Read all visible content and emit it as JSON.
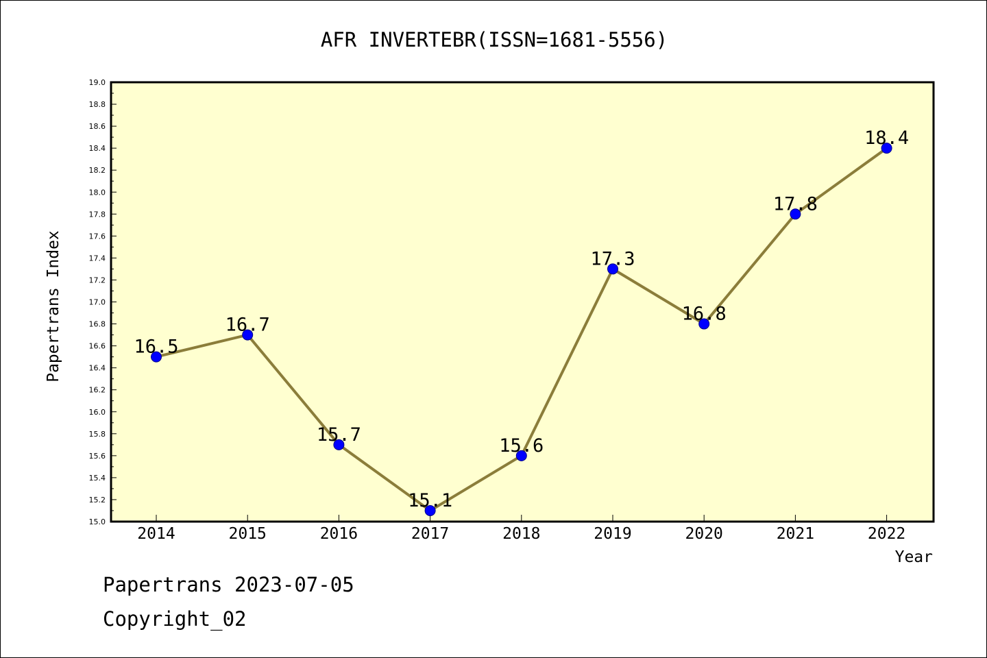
{
  "chart_data": {
    "type": "line",
    "title": "AFR INVERTEBR(ISSN=1681-5556)",
    "xlabel": "Year",
    "ylabel": "Papertrans Index",
    "x": [
      "2014",
      "2015",
      "2016",
      "2017",
      "2018",
      "2019",
      "2020",
      "2021",
      "2022"
    ],
    "values": [
      16.5,
      16.7,
      15.7,
      15.1,
      15.6,
      17.3,
      16.8,
      17.8,
      18.4
    ],
    "value_labels": [
      "16.5",
      "16.7",
      "15.7",
      "15.1",
      "15.6",
      "17.3",
      "16.8",
      "17.8",
      "18.4"
    ],
    "ylim": [
      15.0,
      19.0
    ],
    "yticks": [
      "15.0",
      "15.2",
      "15.4",
      "15.6",
      "15.8",
      "16.0",
      "16.2",
      "16.4",
      "16.6",
      "16.8",
      "17.0",
      "17.2",
      "17.4",
      "17.6",
      "17.8",
      "18.0",
      "18.2",
      "18.4",
      "18.6",
      "18.8",
      "19.0"
    ],
    "grid": false,
    "legend": "none",
    "colors": {
      "plot_background": "#ffffd0",
      "line": "#8b7d3a",
      "marker": "#0000ff",
      "marker_edge": "#00008b"
    }
  },
  "footer": {
    "line1": "Papertrans 2023-07-05",
    "line2": "Copyright_02"
  }
}
